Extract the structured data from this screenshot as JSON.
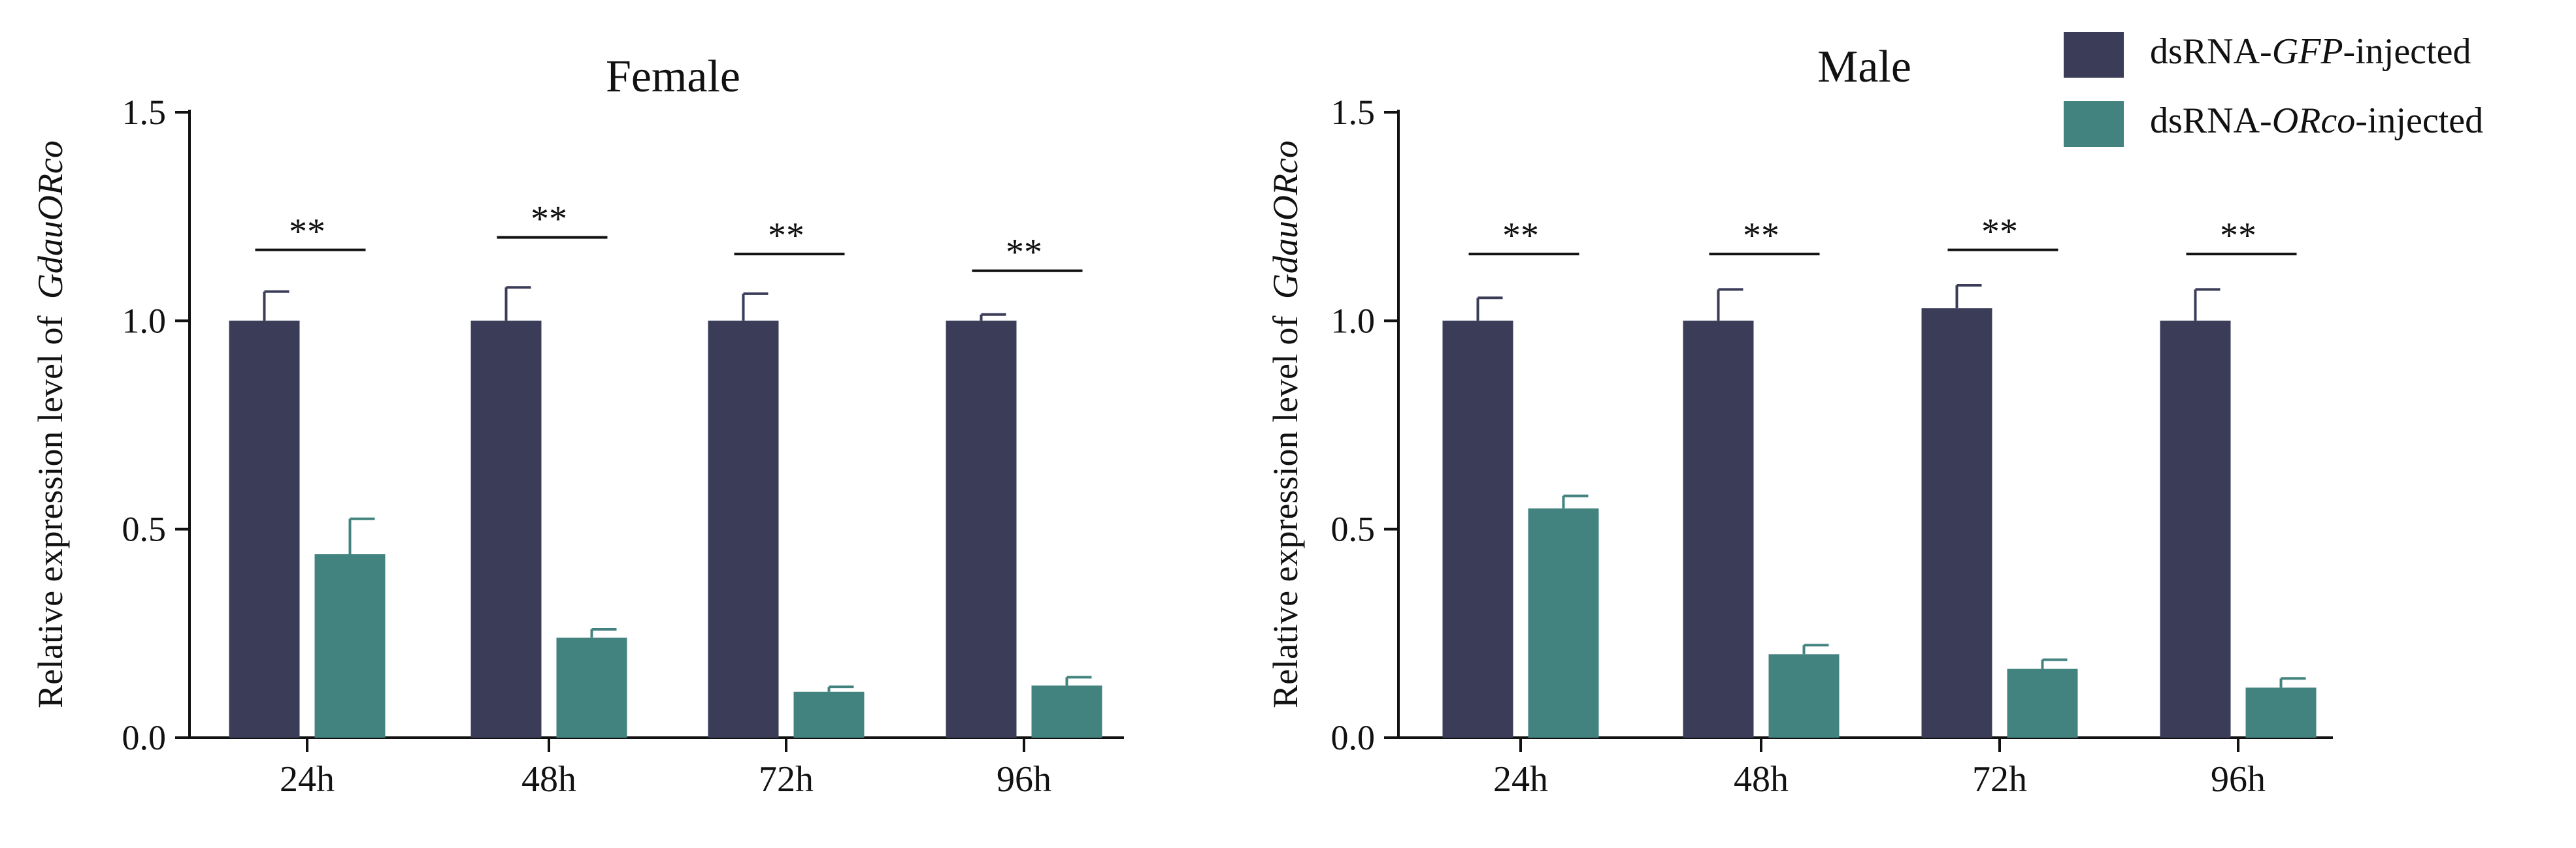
{
  "legend": {
    "entries": [
      {
        "parts": [
          {
            "t": "dsRNA-",
            "i": false
          },
          {
            "t": "GFP",
            "i": true
          },
          {
            "t": "-injected",
            "i": false
          }
        ],
        "color": "#3b3d58"
      },
      {
        "parts": [
          {
            "t": "dsRNA-",
            "i": false
          },
          {
            "t": "ORco",
            "i": true
          },
          {
            "t": "-injected",
            "i": false
          }
        ],
        "color": "#43837f"
      }
    ]
  },
  "chart_data": [
    {
      "type": "bar",
      "title": "Female",
      "ylabel_plain": "Relative expression level of ",
      "ylabel_italic": "GdauORco",
      "xlabel": "",
      "categories": [
        "24h",
        "48h",
        "72h",
        "96h"
      ],
      "ylim": [
        0,
        1.5
      ],
      "yticks": [
        0.0,
        0.5,
        1.0,
        1.5
      ],
      "ytick_labels": [
        "0.0",
        "0.5",
        "1.0",
        "1.5"
      ],
      "series": [
        {
          "name": "dsRNA-GFP-injected",
          "color": "#3b3d58",
          "values": [
            1.0,
            1.0,
            1.0,
            1.0
          ],
          "errors": [
            0.07,
            0.08,
            0.065,
            0.015
          ]
        },
        {
          "name": "dsRNA-ORco-injected",
          "color": "#43837f",
          "values": [
            0.44,
            0.24,
            0.11,
            0.125
          ],
          "errors": [
            0.085,
            0.02,
            0.012,
            0.02
          ]
        }
      ],
      "significance": [
        {
          "label": "**",
          "level": 1.17
        },
        {
          "label": "**",
          "level": 1.2
        },
        {
          "label": "**",
          "level": 1.16
        },
        {
          "label": "**",
          "level": 1.12
        }
      ]
    },
    {
      "type": "bar",
      "title": "Male",
      "ylabel_plain": "Relative expression level of ",
      "ylabel_italic": "GdauORco",
      "xlabel": "",
      "categories": [
        "24h",
        "48h",
        "72h",
        "96h"
      ],
      "ylim": [
        0,
        1.5
      ],
      "yticks": [
        0.0,
        0.5,
        1.0,
        1.5
      ],
      "ytick_labels": [
        "0.0",
        "0.5",
        "1.0",
        "1.5"
      ],
      "series": [
        {
          "name": "dsRNA-GFP-injected",
          "color": "#3b3d58",
          "values": [
            1.0,
            1.0,
            1.03,
            1.0
          ],
          "errors": [
            0.055,
            0.075,
            0.055,
            0.075
          ]
        },
        {
          "name": "dsRNA-ORco-injected",
          "color": "#43837f",
          "values": [
            0.55,
            0.2,
            0.165,
            0.12
          ],
          "errors": [
            0.03,
            0.022,
            0.022,
            0.022
          ]
        }
      ],
      "significance": [
        {
          "label": "**",
          "level": 1.16
        },
        {
          "label": "**",
          "level": 1.16
        },
        {
          "label": "**",
          "level": 1.17
        },
        {
          "label": "**",
          "level": 1.16
        }
      ]
    }
  ]
}
